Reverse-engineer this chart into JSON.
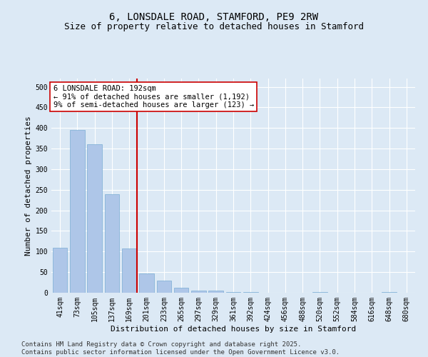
{
  "title": "6, LONSDALE ROAD, STAMFORD, PE9 2RW",
  "subtitle": "Size of property relative to detached houses in Stamford",
  "xlabel": "Distribution of detached houses by size in Stamford",
  "ylabel": "Number of detached properties",
  "categories": [
    "41sqm",
    "73sqm",
    "105sqm",
    "137sqm",
    "169sqm",
    "201sqm",
    "233sqm",
    "265sqm",
    "297sqm",
    "329sqm",
    "361sqm",
    "392sqm",
    "424sqm",
    "456sqm",
    "488sqm",
    "520sqm",
    "552sqm",
    "584sqm",
    "616sqm",
    "648sqm",
    "680sqm"
  ],
  "values": [
    110,
    395,
    360,
    240,
    108,
    47,
    30,
    13,
    5,
    5,
    1,
    1,
    0,
    0,
    0,
    1,
    0,
    0,
    0,
    1,
    0
  ],
  "bar_color": "#aec6e8",
  "bar_edge_color": "#7aadd4",
  "vline_color": "#cc0000",
  "vline_index": 4,
  "annotation_text": "6 LONSDALE ROAD: 192sqm\n← 91% of detached houses are smaller (1,192)\n9% of semi-detached houses are larger (123) →",
  "annotation_box_color": "#ffffff",
  "annotation_box_edge": "#cc0000",
  "background_color": "#dce9f5",
  "plot_bg_color": "#dce9f5",
  "footer_line1": "Contains HM Land Registry data © Crown copyright and database right 2025.",
  "footer_line2": "Contains public sector information licensed under the Open Government Licence v3.0.",
  "ylim": [
    0,
    520
  ],
  "yticks": [
    0,
    50,
    100,
    150,
    200,
    250,
    300,
    350,
    400,
    450,
    500
  ],
  "title_fontsize": 10,
  "subtitle_fontsize": 9,
  "axis_label_fontsize": 8,
  "tick_fontsize": 7,
  "annotation_fontsize": 7.5,
  "footer_fontsize": 6.5
}
